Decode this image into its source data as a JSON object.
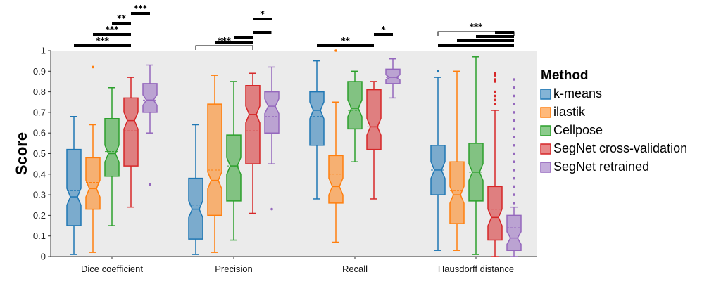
{
  "chart_data": {
    "type": "box",
    "title": "",
    "xlabel": "",
    "ylabel": "Score",
    "ylim": [
      0,
      1
    ],
    "yticks": [
      "0",
      "0.1",
      "0.2",
      "0.3",
      "0.4",
      "0.5",
      "0.6",
      "0.7",
      "0.8",
      "0.9",
      "1"
    ],
    "grid": false,
    "legend": {
      "title": "Method",
      "placement": "right",
      "entries": [
        "k-means",
        "ilastik",
        "Cellpose",
        "SegNet cross-validation",
        "SegNet retrained"
      ]
    },
    "colors": [
      "#1f77b4",
      "#ff7f0e",
      "#2ca02c",
      "#d62728",
      "#9467bd"
    ],
    "categories": [
      "Dice coefficient",
      "Precision",
      "Recall",
      "Hausdorff distance"
    ],
    "series": [
      {
        "name": "k-means",
        "boxes": [
          {
            "min": 0.01,
            "q1": 0.15,
            "median": 0.29,
            "q3": 0.52,
            "max": 0.68,
            "mean": 0.32,
            "outliers": []
          },
          {
            "min": 0.01,
            "q1": 0.085,
            "median": 0.23,
            "q3": 0.38,
            "max": 0.64,
            "mean": 0.25,
            "outliers": []
          },
          {
            "min": 0.28,
            "q1": 0.54,
            "median": 0.71,
            "q3": 0.8,
            "max": 0.95,
            "mean": 0.68,
            "outliers": []
          },
          {
            "min": 0.03,
            "q1": 0.3,
            "median": 0.42,
            "q3": 0.54,
            "max": 0.87,
            "mean": 0.42,
            "outliers": [
              0.9
            ]
          }
        ]
      },
      {
        "name": "ilastik",
        "boxes": [
          {
            "min": 0.02,
            "q1": 0.23,
            "median": 0.33,
            "q3": 0.48,
            "max": 0.64,
            "mean": 0.36,
            "outliers": [
              0.92
            ]
          },
          {
            "min": 0.02,
            "q1": 0.2,
            "median": 0.37,
            "q3": 0.74,
            "max": 0.88,
            "mean": 0.42,
            "outliers": []
          },
          {
            "min": 0.07,
            "q1": 0.26,
            "median": 0.34,
            "q3": 0.49,
            "max": 0.75,
            "mean": 0.4,
            "outliers": [
              1.0
            ]
          },
          {
            "min": 0.03,
            "q1": 0.16,
            "median": 0.3,
            "q3": 0.46,
            "max": 0.9,
            "mean": 0.32,
            "outliers": []
          }
        ]
      },
      {
        "name": "Cellpose",
        "boxes": [
          {
            "min": 0.15,
            "q1": 0.39,
            "median": 0.5,
            "q3": 0.67,
            "max": 0.82,
            "mean": 0.51,
            "outliers": []
          },
          {
            "min": 0.08,
            "q1": 0.27,
            "median": 0.44,
            "q3": 0.59,
            "max": 0.85,
            "mean": 0.44,
            "outliers": []
          },
          {
            "min": 0.46,
            "q1": 0.62,
            "median": 0.72,
            "q3": 0.85,
            "max": 0.9,
            "mean": 0.71,
            "outliers": []
          },
          {
            "min": 0.01,
            "q1": 0.27,
            "median": 0.41,
            "q3": 0.55,
            "max": 0.97,
            "mean": 0.41,
            "outliers": []
          }
        ]
      },
      {
        "name": "SegNet cross-validation",
        "boxes": [
          {
            "min": 0.24,
            "q1": 0.44,
            "median": 0.66,
            "q3": 0.77,
            "max": 0.87,
            "mean": 0.61,
            "outliers": []
          },
          {
            "min": 0.21,
            "q1": 0.45,
            "median": 0.69,
            "q3": 0.83,
            "max": 0.89,
            "mean": 0.61,
            "outliers": []
          },
          {
            "min": 0.28,
            "q1": 0.52,
            "median": 0.63,
            "q3": 0.81,
            "max": 0.85,
            "mean": 0.63,
            "outliers": []
          },
          {
            "min": 0.0,
            "q1": 0.08,
            "median": 0.19,
            "q3": 0.34,
            "max": 0.71,
            "mean": 0.23,
            "outliers": [
              0.74,
              0.76,
              0.78,
              0.8,
              0.85,
              0.86,
              0.88,
              0.89
            ]
          }
        ]
      },
      {
        "name": "SegNet retrained",
        "boxes": [
          {
            "min": 0.6,
            "q1": 0.7,
            "median": 0.76,
            "q3": 0.84,
            "max": 0.93,
            "mean": 0.76,
            "outliers": [
              0.35
            ]
          },
          {
            "min": 0.45,
            "q1": 0.6,
            "median": 0.73,
            "q3": 0.8,
            "max": 0.92,
            "mean": 0.68,
            "outliers": [
              0.23
            ]
          },
          {
            "min": 0.77,
            "q1": 0.84,
            "median": 0.87,
            "q3": 0.91,
            "max": 0.96,
            "mean": 0.87,
            "outliers": []
          },
          {
            "min": 0.0,
            "q1": 0.03,
            "median": 0.09,
            "q3": 0.2,
            "max": 0.24,
            "mean": 0.14,
            "outliers": [
              0.26,
              0.3,
              0.34,
              0.38,
              0.42,
              0.46,
              0.5,
              0.54,
              0.58,
              0.62,
              0.66,
              0.7,
              0.74,
              0.78,
              0.82,
              0.86
            ]
          }
        ]
      }
    ],
    "significance": [
      {
        "category": 0,
        "from": 0,
        "to": 3,
        "label": "***"
      },
      {
        "category": 0,
        "from": 1,
        "to": 3,
        "label": "***"
      },
      {
        "category": 0,
        "from": 2,
        "to": 3,
        "label": "**"
      },
      {
        "category": 0,
        "from": 3,
        "to": 4,
        "label": "***"
      },
      {
        "category": 1,
        "from": 0,
        "to": 3,
        "label": "***"
      },
      {
        "category": 1,
        "from": 3,
        "to": 4,
        "label": "*"
      },
      {
        "category": 2,
        "from": 0,
        "to": 3,
        "label": "**"
      },
      {
        "category": 2,
        "from": 3,
        "to": 4,
        "label": "*"
      },
      {
        "category": 3,
        "from": 0,
        "to": 4,
        "label": "***"
      }
    ]
  }
}
